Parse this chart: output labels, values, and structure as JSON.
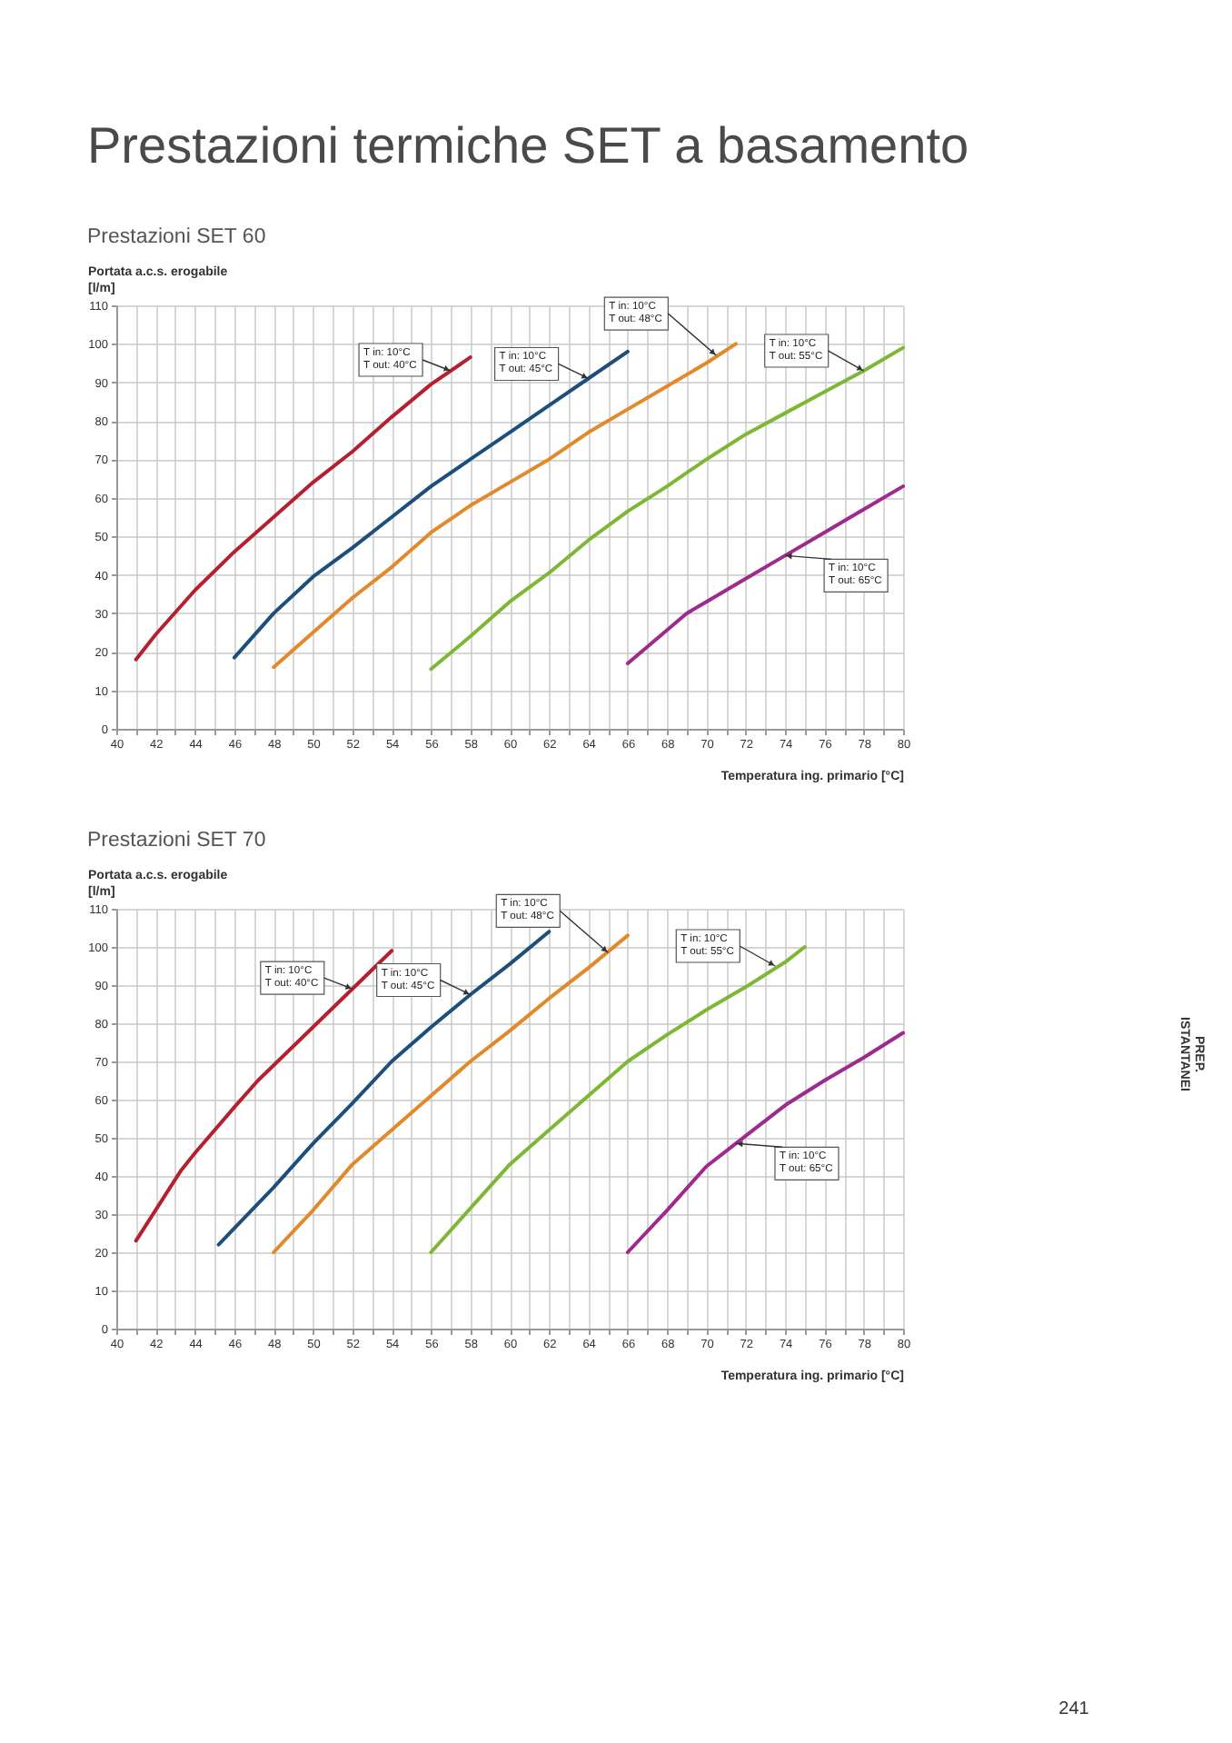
{
  "chart_data": [
    {
      "type": "line",
      "title": "Prestazioni termiche SET a basamento",
      "subtitle": "Prestazioni SET 60",
      "xlabel": "Temperatura ing. primario [°C]",
      "ylabel": "Portata a.c.s. erogabile\n[l/m]",
      "xlim": [
        40,
        80
      ],
      "ylim": [
        0,
        110
      ],
      "xticks": [
        40,
        {
          "value": 41,
          "label": null
        },
        42,
        {
          "value": 43,
          "label": null
        },
        44,
        {
          "value": 45,
          "label": null
        },
        46,
        {
          "value": 47,
          "label": null
        },
        48,
        {
          "value": 49,
          "label": null
        },
        50,
        {
          "value": 51,
          "label": null
        },
        52,
        {
          "value": 53,
          "label": null
        },
        54,
        {
          "value": 55,
          "label": null
        },
        56,
        {
          "value": 57,
          "label": null
        },
        58,
        {
          "value": 59,
          "label": null
        },
        60,
        {
          "value": 61,
          "label": null
        },
        62,
        {
          "value": 63,
          "label": null
        },
        64,
        {
          "value": 65,
          "label": null
        },
        66,
        {
          "value": 67,
          "label": null
        },
        68,
        {
          "value": 69,
          "label": null
        },
        70,
        {
          "value": 71,
          "label": null
        },
        72,
        {
          "value": 73,
          "label": null
        },
        74,
        {
          "value": 75,
          "label": null
        },
        76,
        {
          "value": 77,
          "label": null
        },
        78,
        {
          "value": 79,
          "label": null
        },
        80
      ],
      "yticks": [
        0,
        10,
        20,
        30,
        40,
        50,
        60,
        70,
        80,
        90,
        100,
        110
      ],
      "grid": true,
      "series": [
        {
          "color": "#b5202e",
          "x": [
            41,
            42,
            44,
            46,
            48,
            50,
            52,
            54,
            56,
            58
          ],
          "values": [
            18,
            24.5,
            36,
            46,
            55,
            64,
            72,
            81,
            89.5,
            96.5
          ]
        },
        {
          "color": "#1d4f7c",
          "x": [
            46,
            48,
            50,
            52,
            54,
            56,
            58,
            60,
            62,
            64,
            66
          ],
          "values": [
            18.5,
            30,
            39.5,
            47,
            55,
            63,
            70,
            77,
            84,
            91,
            98
          ]
        },
        {
          "color": "#e2892a",
          "x": [
            48,
            50,
            52,
            54,
            56,
            58,
            60,
            62,
            64,
            66,
            68,
            70,
            71.5
          ],
          "values": [
            16,
            25,
            34,
            42,
            51,
            58,
            64,
            70,
            77,
            83,
            89,
            95,
            100
          ]
        },
        {
          "color": "#7db834",
          "x": [
            56,
            58,
            60,
            62,
            64,
            66,
            68,
            70,
            72,
            74,
            76,
            78,
            80
          ],
          "values": [
            15.5,
            24,
            33,
            40.5,
            49,
            56.5,
            63,
            70,
            76.5,
            82,
            87.5,
            93,
            99
          ]
        },
        {
          "color": "#9e2a8e",
          "x": [
            66,
            69,
            70,
            72,
            74,
            76,
            78,
            80
          ],
          "values": [
            17,
            30,
            33,
            39,
            45,
            51,
            57,
            63
          ]
        }
      ],
      "annotations": [
        {
          "text": "T in: 10°C\nT out: 40°C",
          "x": 57,
          "y": 93
        },
        {
          "text": "T in: 10°C\nT out: 45°C",
          "x": 64,
          "y": 91
        },
        {
          "text": "T in: 10°C\nT out: 48°C",
          "x": 70.5,
          "y": 97
        },
        {
          "text": "T in: 10°C\nT out: 55°C",
          "x": 78,
          "y": 93
        },
        {
          "text": "T in: 10°C\nT out: 65°C",
          "x": 74,
          "y": 45
        }
      ]
    },
    {
      "type": "line",
      "subtitle": "Prestazioni SET 70",
      "xlabel": "Temperatura ing. primario [°C]",
      "ylabel": "Portata a.c.s. erogabile\n[l/m]",
      "xlim": [
        40,
        80
      ],
      "ylim": [
        0,
        110
      ],
      "xticks": [
        40,
        {
          "value": 41,
          "label": null
        },
        42,
        {
          "value": 43,
          "label": null
        },
        44,
        {
          "value": 45,
          "label": null
        },
        46,
        {
          "value": 47,
          "label": null
        },
        48,
        {
          "value": 49,
          "label": null
        },
        50,
        {
          "value": 51,
          "label": null
        },
        52,
        {
          "value": 53,
          "label": null
        },
        54,
        {
          "value": 55,
          "label": null
        },
        56,
        {
          "value": 57,
          "label": null
        },
        58,
        {
          "value": 59,
          "label": null
        },
        60,
        {
          "value": 61,
          "label": null
        },
        62,
        {
          "value": 63,
          "label": null
        },
        64,
        {
          "value": 65,
          "label": null
        },
        66,
        {
          "value": 67,
          "label": null
        },
        68,
        {
          "value": 69,
          "label": null
        },
        70,
        {
          "value": 71,
          "label": null
        },
        72,
        {
          "value": 73,
          "label": null
        },
        74,
        {
          "value": 75,
          "label": null
        },
        76,
        {
          "value": 77,
          "label": null
        },
        78,
        {
          "value": 79,
          "label": null
        },
        80
      ],
      "yticks": [
        0,
        10,
        20,
        30,
        40,
        50,
        60,
        70,
        80,
        90,
        100,
        110
      ],
      "grid": true,
      "series": [
        {
          "color": "#b5202e",
          "x": [
            41,
            43.3,
            44,
            46,
            47.2,
            48,
            50,
            52,
            54
          ],
          "values": [
            23,
            41.5,
            46,
            58,
            65,
            69,
            79,
            89,
            99
          ]
        },
        {
          "color": "#1d4f7c",
          "x": [
            45.2,
            48,
            50,
            52,
            54,
            56,
            58,
            60,
            62
          ],
          "values": [
            22,
            37,
            48.5,
            59,
            70,
            79,
            87.5,
            95.5,
            104
          ]
        },
        {
          "color": "#e2892a",
          "x": [
            48,
            50,
            52,
            54,
            56,
            58,
            60,
            62,
            64,
            66
          ],
          "values": [
            20,
            31,
            43,
            52,
            61,
            70,
            78,
            86.5,
            94.5,
            103
          ]
        },
        {
          "color": "#7db834",
          "x": [
            56,
            58,
            60,
            62,
            64,
            66,
            68,
            70,
            72,
            74,
            75
          ],
          "values": [
            20,
            31.5,
            43,
            52,
            61,
            70,
            77,
            83.5,
            89.5,
            96,
            100
          ]
        },
        {
          "color": "#9e2a8e",
          "x": [
            66,
            68,
            70,
            72,
            74,
            76,
            78,
            80
          ],
          "values": [
            20,
            31,
            42.5,
            50.5,
            58.5,
            65,
            71,
            77.5
          ]
        }
      ],
      "annotations": [
        {
          "text": "T in: 10°C\nT out: 40°C",
          "x": 52,
          "y": 89
        },
        {
          "text": "T in: 10°C\nT out: 45°C",
          "x": 58,
          "y": 87.5
        },
        {
          "text": "T in: 10°C\nT out: 48°C",
          "x": 65,
          "y": 98.5
        },
        {
          "text": "T in: 10°C\nT out: 55°C",
          "x": 73.5,
          "y": 95
        },
        {
          "text": "T in: 10°C\nT out: 65°C",
          "x": 71.5,
          "y": 48.5
        },
        "PREP.\nISTANTANEI",
        "241"
      ]
    }
  ]
}
